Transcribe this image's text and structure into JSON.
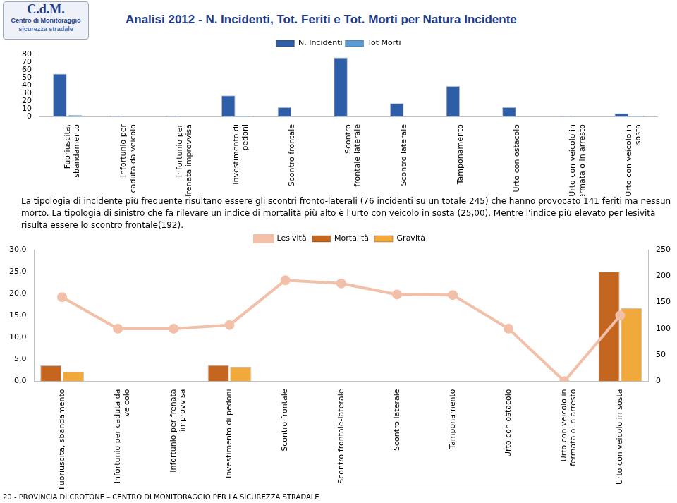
{
  "header": {
    "logo": [
      "C.d.M.",
      "Centro di Monitoraggio",
      "sicurezza stradale"
    ],
    "title": "Analisi 2012 - N. Incidenti, Tot. Feriti e Tot. Morti per Natura Incidente"
  },
  "text": "La tipologia di incidente più frequente risultano essere gli scontri fronto-laterali (76 incidenti su un totale 245) che hanno provocato 141 feriti ma nessun morto. La tipologia di sinistro che fa rilevare un indice di mortalità più alto è l'urto con veicolo in sosta (25,00). Mentre l'indice più elevato per lesività risulta essere lo scontro frontale(192).",
  "footer": "20 - PROVINCIA DI CROTONE – CENTRO DI MONITORAGGIO PER LA SICUREZZA STRADALE",
  "chart_data": [
    {
      "type": "bar",
      "categories": [
        "Fuoriuscita, sbandamento",
        "Infortunio per caduta da veicolo",
        "Infortunio per frenata improvvisa",
        "Investimento di pedoni",
        "Scontro frontale",
        "Scontro frontale-laterale",
        "Scontro laterale",
        "Tamponamento",
        "Urto con ostacolo",
        "Urto con veicolo in fermata o in arresto",
        "Urto con veicolo in sosta"
      ],
      "series": [
        {
          "name": "N. Incidenti",
          "color": "#2f5ea8",
          "values": [
            55,
            1,
            1,
            27,
            12,
            76,
            17,
            39,
            12,
            1,
            4
          ]
        },
        {
          "name": "Tot Morti",
          "color": "#5b9bd5",
          "values": [
            2,
            0,
            0,
            1,
            0,
            0,
            0,
            0,
            0,
            0,
            1
          ]
        }
      ],
      "ylim": [
        0,
        80
      ],
      "yticks": [
        0,
        10,
        20,
        30,
        40,
        50,
        60,
        70,
        80
      ],
      "grid": false,
      "legend": "top"
    },
    {
      "type": "bar",
      "categories": [
        "Fuoriuscita, sbandamento",
        "Infortunio per caduta da veicolo",
        "Infortunio per frenata improvvisa",
        "Investimento di pedoni",
        "Scontro frontale",
        "Scontro frontale-laterale",
        "Scontro laterale",
        "Tamponamento",
        "Urto con ostacolo",
        "Urto con veicolo in fermata o in arresto",
        "Urto con veicolo in sosta"
      ],
      "series": [
        {
          "name": "Mortalità",
          "color": "#c4661f",
          "values": [
            3.6,
            0,
            0,
            3.7,
            0,
            0,
            0,
            0,
            0,
            0,
            25.0
          ]
        },
        {
          "name": "Gravità",
          "color": "#f2a93b",
          "values": [
            2.2,
            0,
            0,
            3.3,
            0,
            0,
            0,
            0,
            0,
            0,
            16.7
          ]
        },
        {
          "name": "Lesività",
          "type": "line",
          "axis": "y2",
          "color": "#f2bfa8",
          "marker": "circle",
          "values": [
            160,
            100,
            100,
            107,
            192,
            186,
            165,
            164,
            100,
            0,
            125
          ]
        }
      ],
      "ylim": [
        0,
        30
      ],
      "yticks": [
        {
          "value": 0,
          "label": "0,0"
        },
        {
          "value": 5,
          "label": "5,0"
        },
        {
          "value": 10,
          "label": "10,0"
        },
        {
          "value": 15,
          "label": "15,0"
        },
        {
          "value": 20,
          "label": "20,0"
        },
        {
          "value": 25,
          "label": "25,0"
        },
        {
          "value": 30,
          "label": "30,0"
        }
      ],
      "y2lim": [
        0,
        250
      ],
      "y2ticks": [
        0,
        50,
        100,
        150,
        200,
        250
      ],
      "grid": false,
      "legend": "top"
    }
  ]
}
